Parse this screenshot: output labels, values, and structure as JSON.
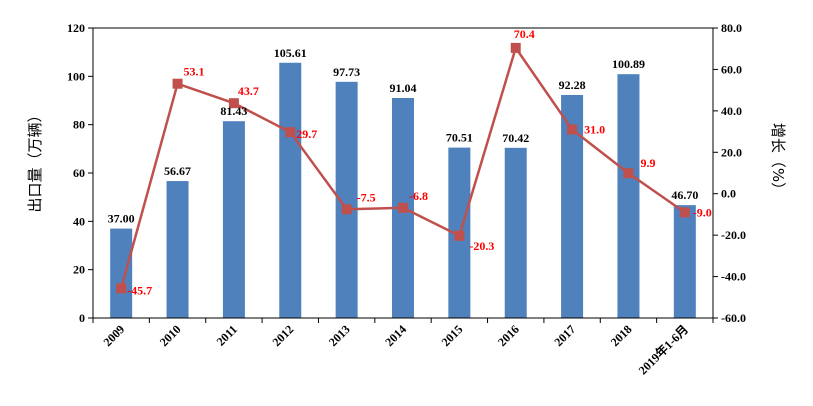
{
  "chart_data": {
    "type": "bar+line",
    "categories": [
      "2009",
      "2010",
      "2011",
      "2012",
      "2013",
      "2014",
      "2015",
      "2016",
      "2017",
      "2018",
      "2019年1-6月"
    ],
    "series": [
      {
        "kind": "bar",
        "axis": "left",
        "values": [
          37.0,
          56.67,
          81.43,
          105.61,
          97.73,
          91.04,
          70.51,
          70.42,
          92.28,
          100.89,
          46.7
        ],
        "labels": [
          "37.00",
          "56.67",
          "81.43",
          "105.61",
          "97.73",
          "91.04",
          "70.51",
          "70.42",
          "92.28",
          "100.89",
          "46.70"
        ],
        "color": "#4F81BD"
      },
      {
        "kind": "line",
        "axis": "right",
        "values": [
          -45.7,
          53.1,
          43.7,
          29.7,
          -7.5,
          -6.8,
          -20.3,
          70.4,
          31.0,
          9.9,
          -9.0
        ],
        "labels": [
          "-45.7",
          "53.1",
          "43.7",
          "29.7",
          "-7.5",
          "-6.8",
          "-20.3",
          "70.4",
          "31.0",
          "9.9",
          "-9.0"
        ],
        "color": "#C0504D",
        "label_color": "#FF0000"
      }
    ],
    "ylabel_left": "出口量（万辆）",
    "ylabel_right": "增长（%）",
    "ylim_left": [
      0,
      120
    ],
    "yticks_left": [
      "0",
      "20",
      "40",
      "60",
      "80",
      "100",
      "120"
    ],
    "ylim_right": [
      -60,
      80
    ],
    "yticks_right": [
      "-60.0",
      "-40.0",
      "-20.0",
      "0.0",
      "20.0",
      "40.0",
      "60.0",
      "80.0"
    ],
    "grid": false,
    "legend": "none"
  }
}
